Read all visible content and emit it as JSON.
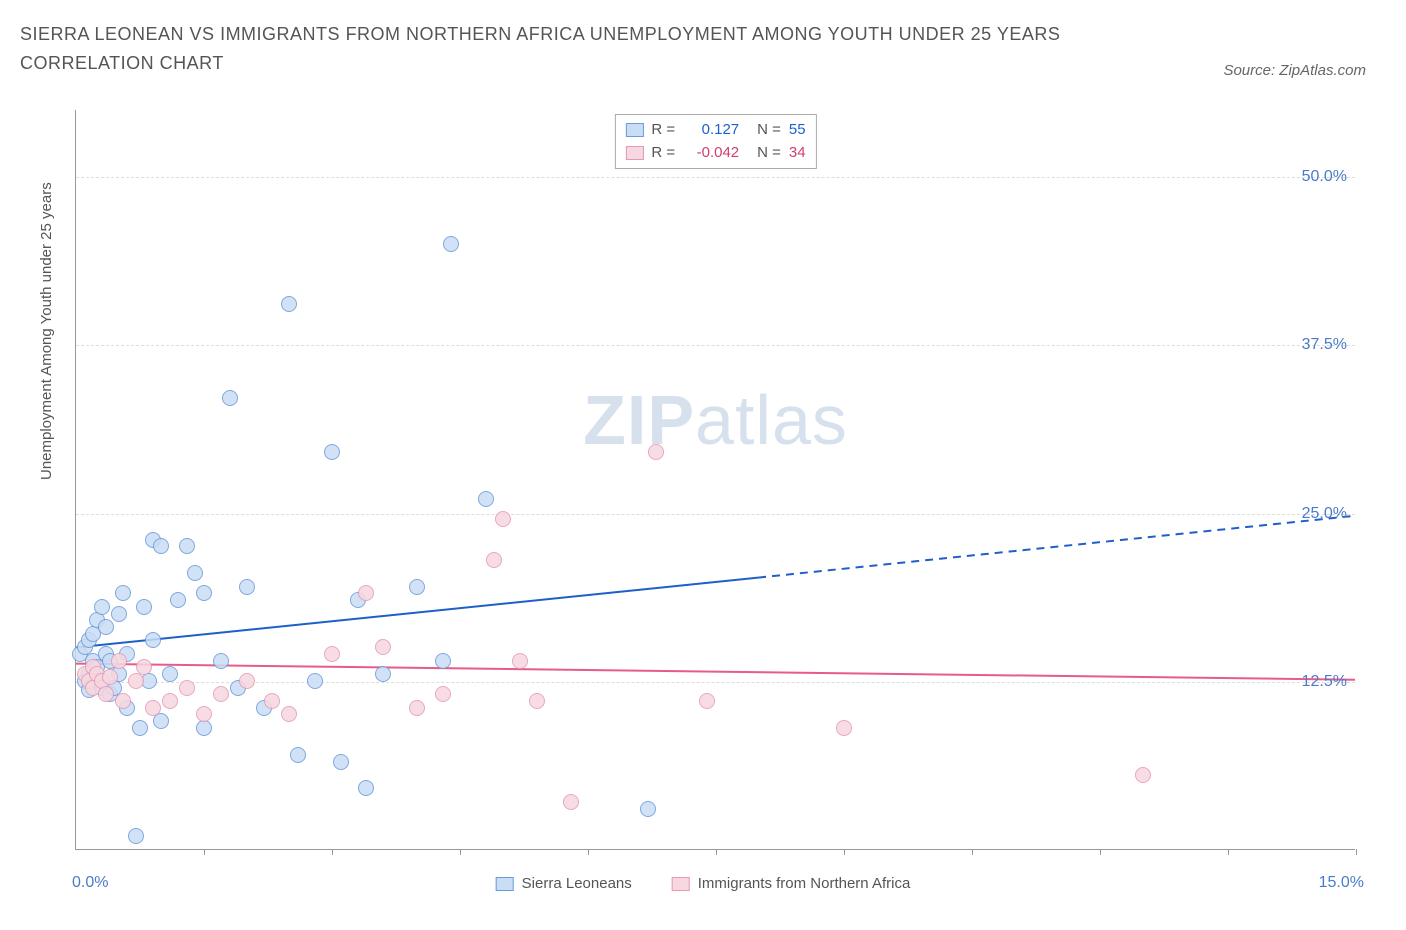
{
  "title": "SIERRA LEONEAN VS IMMIGRANTS FROM NORTHERN AFRICA UNEMPLOYMENT AMONG YOUTH UNDER 25 YEARS CORRELATION CHART",
  "source_label": "Source: ZipAtlas.com",
  "y_axis_label": "Unemployment Among Youth under 25 years",
  "watermark_bold": "ZIP",
  "watermark_light": "atlas",
  "chart": {
    "type": "scatter",
    "background_color": "#ffffff",
    "grid_color": "#dddddd",
    "axis_color": "#999999",
    "x": {
      "min": 0,
      "max": 15,
      "label_min": "0.0%",
      "label_max": "15.0%",
      "tick_step": 1.5,
      "tick_count": 10
    },
    "y": {
      "min": 0,
      "max": 55,
      "ticks": [
        12.5,
        25.0,
        37.5,
        50.0
      ],
      "tick_labels": [
        "12.5%",
        "25.0%",
        "37.5%",
        "50.0%"
      ],
      "label_color": "#4a7bc8"
    },
    "point_radius": 8,
    "point_stroke_width": 1.5,
    "series": [
      {
        "name": "Sierra Leoneans",
        "fill": "#c9ddf5",
        "stroke": "#6a9ad8",
        "R": "0.127",
        "N": "55",
        "stat_color": "#2060d0",
        "trend": {
          "solid_x0": 0,
          "solid_y0": 15.0,
          "solid_x1": 8.0,
          "solid_y1": 20.2,
          "dash_x1": 15.0,
          "dash_y1": 24.8,
          "color": "#1f5fc8",
          "width": 2
        },
        "points": [
          [
            0.05,
            14.5
          ],
          [
            0.1,
            12.5
          ],
          [
            0.1,
            15.0
          ],
          [
            0.15,
            13.0
          ],
          [
            0.15,
            11.8
          ],
          [
            0.15,
            15.5
          ],
          [
            0.2,
            16.0
          ],
          [
            0.2,
            14.0
          ],
          [
            0.2,
            12.8
          ],
          [
            0.25,
            17.0
          ],
          [
            0.25,
            13.5
          ],
          [
            0.3,
            18.0
          ],
          [
            0.3,
            12.0
          ],
          [
            0.35,
            14.5
          ],
          [
            0.35,
            16.5
          ],
          [
            0.4,
            14.0
          ],
          [
            0.4,
            11.5
          ],
          [
            0.45,
            12.0
          ],
          [
            0.5,
            17.5
          ],
          [
            0.5,
            13.0
          ],
          [
            0.55,
            19.0
          ],
          [
            0.6,
            14.5
          ],
          [
            0.6,
            10.5
          ],
          [
            0.7,
            1.0
          ],
          [
            0.75,
            9.0
          ],
          [
            0.8,
            18.0
          ],
          [
            0.85,
            12.5
          ],
          [
            0.9,
            23.0
          ],
          [
            0.9,
            15.5
          ],
          [
            1.0,
            22.5
          ],
          [
            1.0,
            9.5
          ],
          [
            1.1,
            13.0
          ],
          [
            1.2,
            18.5
          ],
          [
            1.3,
            22.5
          ],
          [
            1.4,
            20.5
          ],
          [
            1.5,
            19.0
          ],
          [
            1.5,
            9.0
          ],
          [
            1.7,
            14.0
          ],
          [
            1.8,
            33.5
          ],
          [
            1.9,
            12.0
          ],
          [
            2.0,
            19.5
          ],
          [
            2.2,
            10.5
          ],
          [
            2.5,
            40.5
          ],
          [
            2.6,
            7.0
          ],
          [
            2.8,
            12.5
          ],
          [
            3.0,
            29.5
          ],
          [
            3.1,
            6.5
          ],
          [
            3.3,
            18.5
          ],
          [
            3.4,
            4.5
          ],
          [
            3.6,
            13.0
          ],
          [
            4.0,
            19.5
          ],
          [
            4.3,
            14.0
          ],
          [
            4.4,
            45.0
          ],
          [
            4.8,
            26.0
          ],
          [
            6.7,
            3.0
          ]
        ]
      },
      {
        "name": "Immigrants from Northern Africa",
        "fill": "#f7d7e0",
        "stroke": "#e39ab4",
        "R": "-0.042",
        "N": "34",
        "stat_color": "#d04070",
        "trend": {
          "solid_x0": 0,
          "solid_y0": 13.8,
          "solid_x1": 15.0,
          "solid_y1": 12.6,
          "dash_x1": 15.0,
          "dash_y1": 12.6,
          "color": "#e85a8a",
          "width": 2
        },
        "points": [
          [
            0.1,
            13.0
          ],
          [
            0.15,
            12.5
          ],
          [
            0.2,
            13.5
          ],
          [
            0.2,
            12.0
          ],
          [
            0.25,
            13.0
          ],
          [
            0.3,
            12.5
          ],
          [
            0.35,
            11.5
          ],
          [
            0.4,
            12.8
          ],
          [
            0.5,
            14.0
          ],
          [
            0.55,
            11.0
          ],
          [
            0.7,
            12.5
          ],
          [
            0.8,
            13.5
          ],
          [
            0.9,
            10.5
          ],
          [
            1.1,
            11.0
          ],
          [
            1.3,
            12.0
          ],
          [
            1.5,
            10.0
          ],
          [
            1.7,
            11.5
          ],
          [
            2.0,
            12.5
          ],
          [
            2.3,
            11.0
          ],
          [
            2.5,
            10.0
          ],
          [
            3.0,
            14.5
          ],
          [
            3.4,
            19.0
          ],
          [
            3.6,
            15.0
          ],
          [
            4.0,
            10.5
          ],
          [
            4.3,
            11.5
          ],
          [
            4.9,
            21.5
          ],
          [
            5.0,
            24.5
          ],
          [
            5.2,
            14.0
          ],
          [
            5.4,
            11.0
          ],
          [
            5.8,
            3.5
          ],
          [
            6.8,
            29.5
          ],
          [
            7.4,
            11.0
          ],
          [
            9.0,
            9.0
          ],
          [
            12.5,
            5.5
          ]
        ]
      }
    ]
  }
}
